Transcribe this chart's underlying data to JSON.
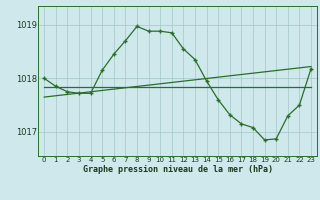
{
  "title": "Graphe pression niveau de la mer (hPa)",
  "bg_color": "#cfe8ec",
  "grid_color": "#aacccc",
  "line_color": "#2a6e2a",
  "ylim": [
    1016.55,
    1019.35
  ],
  "yticks": [
    1017,
    1018,
    1019
  ],
  "xlim": [
    -0.5,
    23.5
  ],
  "xticks": [
    0,
    1,
    2,
    3,
    4,
    5,
    6,
    7,
    8,
    9,
    10,
    11,
    12,
    13,
    14,
    15,
    16,
    17,
    18,
    19,
    20,
    21,
    22,
    23
  ],
  "line1_x": [
    0,
    1,
    2,
    3,
    4,
    5,
    6,
    7,
    8,
    9,
    10,
    11,
    12,
    13,
    14,
    15,
    16,
    17,
    18,
    19,
    20,
    21,
    22,
    23
  ],
  "line1_y": [
    1018.0,
    1017.85,
    1017.75,
    1017.72,
    1017.72,
    1018.15,
    1018.45,
    1018.7,
    1018.97,
    1018.88,
    1018.88,
    1018.85,
    1018.55,
    1018.35,
    1017.95,
    1017.6,
    1017.32,
    1017.15,
    1017.08,
    1016.85,
    1016.87,
    1017.3,
    1017.5,
    1018.18
  ],
  "line2_x": [
    0,
    4,
    23
  ],
  "line2_y": [
    1017.83,
    1017.72,
    1017.83
  ],
  "line3_x": [
    0,
    4,
    23
  ],
  "line3_y": [
    1017.72,
    1017.65,
    1018.22
  ]
}
